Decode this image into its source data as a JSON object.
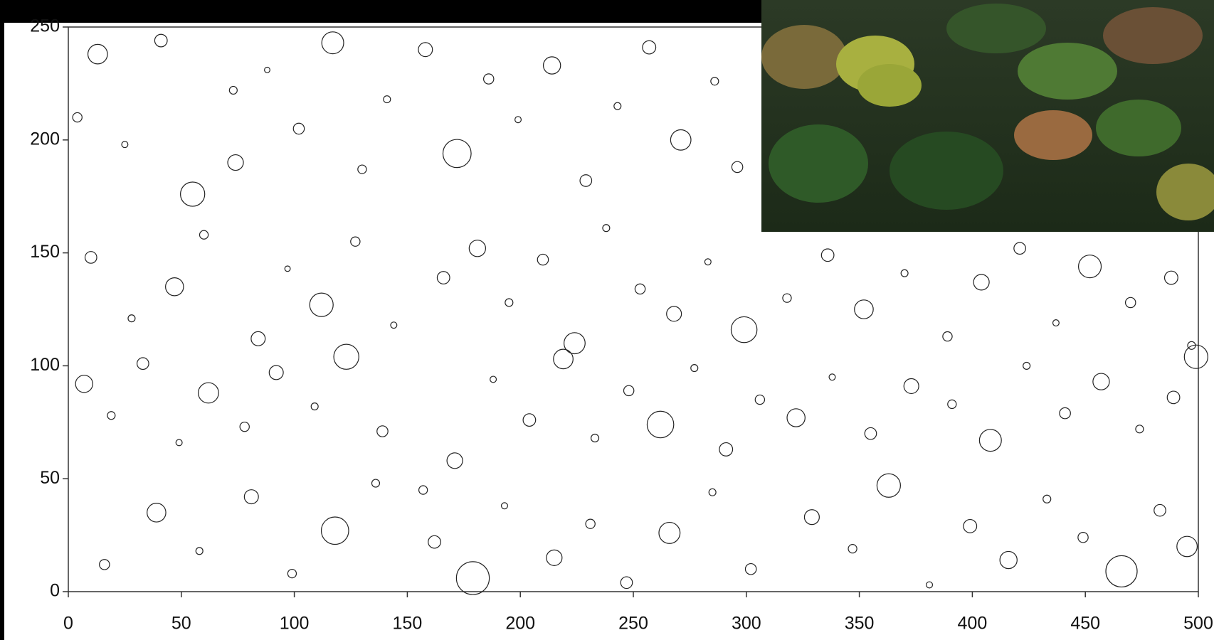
{
  "chart_data": {
    "type": "bubble",
    "x": [
      4,
      13,
      25,
      41,
      55,
      73,
      74,
      88,
      102,
      117,
      130,
      141,
      158,
      172,
      186,
      199,
      214,
      229,
      243,
      257,
      271,
      286,
      296,
      10,
      28,
      47,
      60,
      84,
      97,
      112,
      127,
      144,
      166,
      181,
      195,
      210,
      224,
      238,
      253,
      268,
      283,
      299,
      318,
      336,
      352,
      370,
      389,
      404,
      421,
      437,
      452,
      470,
      488,
      497,
      7,
      19,
      33,
      49,
      62,
      78,
      92,
      109,
      123,
      139,
      157,
      171,
      188,
      204,
      219,
      233,
      248,
      262,
      277,
      291,
      306,
      322,
      338,
      355,
      373,
      391,
      408,
      424,
      441,
      457,
      474,
      489,
      499,
      16,
      39,
      58,
      81,
      99,
      118,
      136,
      162,
      179,
      193,
      215,
      231,
      247,
      266,
      285,
      302,
      329,
      347,
      363,
      381,
      399,
      416,
      433,
      449,
      466,
      483,
      495
    ],
    "y": [
      210,
      238,
      198,
      244,
      176,
      222,
      190,
      231,
      205,
      243,
      187,
      218,
      240,
      194,
      227,
      209,
      233,
      182,
      215,
      241,
      200,
      226,
      188,
      148,
      121,
      135,
      158,
      112,
      143,
      127,
      155,
      118,
      139,
      152,
      128,
      147,
      110,
      161,
      134,
      123,
      146,
      116,
      130,
      149,
      125,
      141,
      113,
      137,
      152,
      119,
      144,
      128,
      139,
      109,
      92,
      78,
      101,
      66,
      88,
      73,
      97,
      82,
      104,
      71,
      45,
      58,
      94,
      76,
      103,
      68,
      89,
      74,
      99,
      63,
      85,
      77,
      95,
      70,
      91,
      83,
      67,
      100,
      79,
      93,
      72,
      86,
      104,
      12,
      35,
      18,
      42,
      8,
      27,
      48,
      22,
      6,
      38,
      15,
      30,
      4,
      26,
      44,
      10,
      33,
      19,
      47,
      3,
      29,
      14,
      41,
      24,
      9,
      36,
      20
    ],
    "sizes": [
      1.2,
      2.5,
      0.8,
      1.6,
      3.1,
      1.0,
      2.0,
      0.7,
      1.4,
      2.8,
      1.1,
      0.9,
      1.8,
      3.6,
      1.3,
      0.8,
      2.2,
      1.5,
      0.9,
      1.7,
      2.6,
      1.0,
      1.4,
      1.5,
      0.9,
      2.3,
      1.1,
      1.8,
      0.7,
      3.0,
      1.2,
      0.8,
      1.6,
      2.1,
      1.0,
      1.4,
      2.7,
      0.9,
      1.3,
      1.9,
      0.8,
      3.3,
      1.1,
      1.6,
      2.4,
      0.9,
      1.2,
      2.0,
      1.5,
      0.8,
      2.9,
      1.3,
      1.7,
      1.0,
      2.2,
      1.0,
      1.5,
      0.8,
      2.6,
      1.2,
      1.8,
      0.9,
      3.2,
      1.4,
      1.1,
      2.0,
      0.8,
      1.6,
      2.5,
      1.0,
      1.3,
      3.4,
      0.9,
      1.7,
      1.2,
      2.3,
      0.8,
      1.5,
      1.9,
      1.1,
      2.8,
      0.9,
      1.4,
      2.1,
      1.0,
      1.6,
      3.0,
      1.3,
      2.4,
      0.9,
      1.8,
      1.1,
      3.5,
      1.0,
      1.6,
      4.2,
      0.8,
      2.0,
      1.2,
      1.5,
      2.7,
      0.9,
      1.4,
      1.9,
      1.1,
      3.0,
      0.8,
      1.7,
      2.2,
      1.0,
      1.3,
      4.0,
      1.5,
      2.6
    ],
    "color": "#222222",
    "xlim": [
      0,
      500
    ],
    "ylim": [
      0,
      250
    ],
    "xticks": [
      0,
      50,
      100,
      150,
      200,
      250,
      300,
      350,
      400,
      450,
      500
    ],
    "yticks": [
      0,
      50,
      100,
      150,
      200,
      250
    ]
  }
}
